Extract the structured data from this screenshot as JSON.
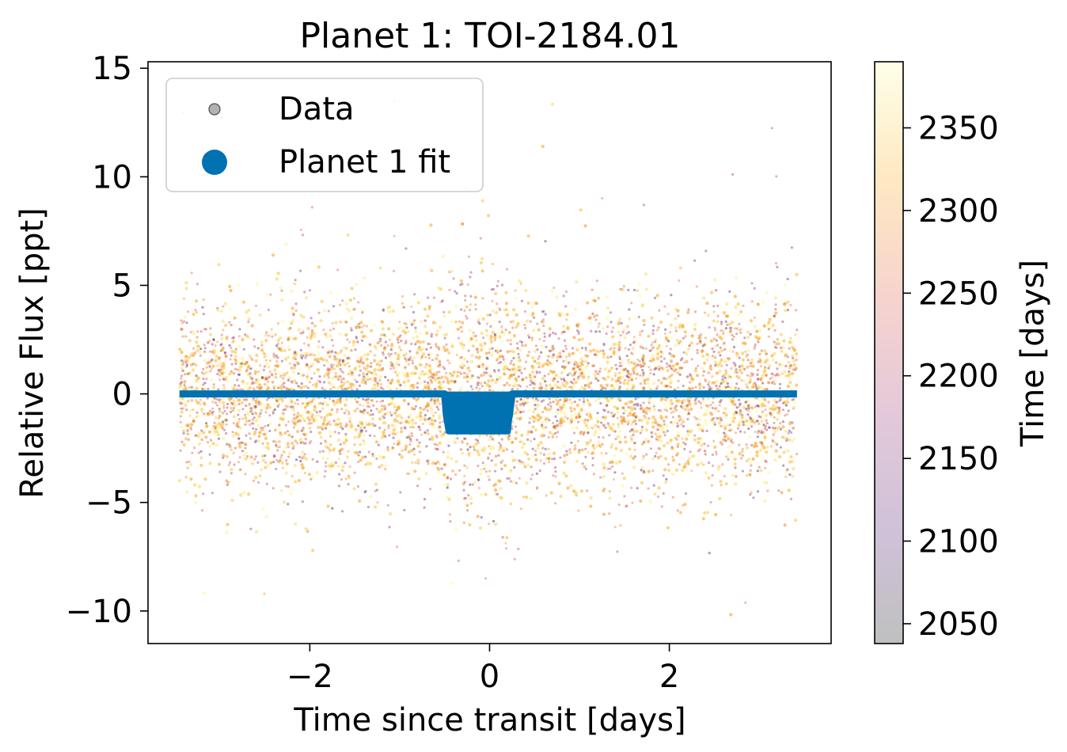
{
  "chart_data": {
    "type": "scatter",
    "title": "Planet 1: TOI-2184.01",
    "xlabel": "Time since transit [days]",
    "ylabel": "Relative Flux [ppt]",
    "xlim": [
      -3.8,
      3.8
    ],
    "ylim": [
      -11.5,
      15.3
    ],
    "xticks": [
      -2,
      0,
      2
    ],
    "xtick_labels": [
      "−2",
      "0",
      "2"
    ],
    "yticks": [
      -10,
      -5,
      0,
      5,
      10,
      15
    ],
    "ytick_labels": [
      "−10",
      "−5",
      "0",
      "5",
      "10",
      "15"
    ],
    "grid": false,
    "legend": {
      "placement": "top-left",
      "entries": [
        {
          "label": "Data",
          "marker": "small-gray-dot",
          "color": "#7f7f7f"
        },
        {
          "label": "Planet 1 fit",
          "marker": "large-blue-dot",
          "color": "#0072b2"
        }
      ]
    },
    "colorbar": {
      "label": "Time [days]",
      "range": [
        2038,
        2390
      ],
      "ticks": [
        2050,
        2100,
        2150,
        2200,
        2250,
        2300,
        2350
      ],
      "tick_labels": [
        "2050",
        "2100",
        "2150",
        "2200",
        "2250",
        "2300",
        "2350"
      ],
      "colormap": "inferno (alpha 0.25)",
      "colors": [
        "#000004",
        "#420a68",
        "#932667",
        "#dd513a",
        "#fca50a",
        "#fcffa4"
      ]
    },
    "series": [
      {
        "name": "Data",
        "kind": "scatter",
        "x_range": [
          -3.45,
          3.42
        ],
        "noise_sigma": 2.2,
        "outlier_range": [
          -10.3,
          14.1
        ],
        "color_by": "time",
        "transit_window": [
          -0.45,
          0.2
        ],
        "note_values": "dense folded light-curve points, flux centered at 0"
      },
      {
        "name": "Planet 1 fit",
        "kind": "model",
        "color": "#0072b2",
        "x": [
          -3.45,
          -0.5,
          -0.48,
          -0.45,
          0.18,
          0.22,
          0.25,
          3.42
        ],
        "y": [
          0,
          0,
          -1.0,
          -1.7,
          -1.7,
          -1.0,
          0,
          0
        ]
      }
    ]
  }
}
